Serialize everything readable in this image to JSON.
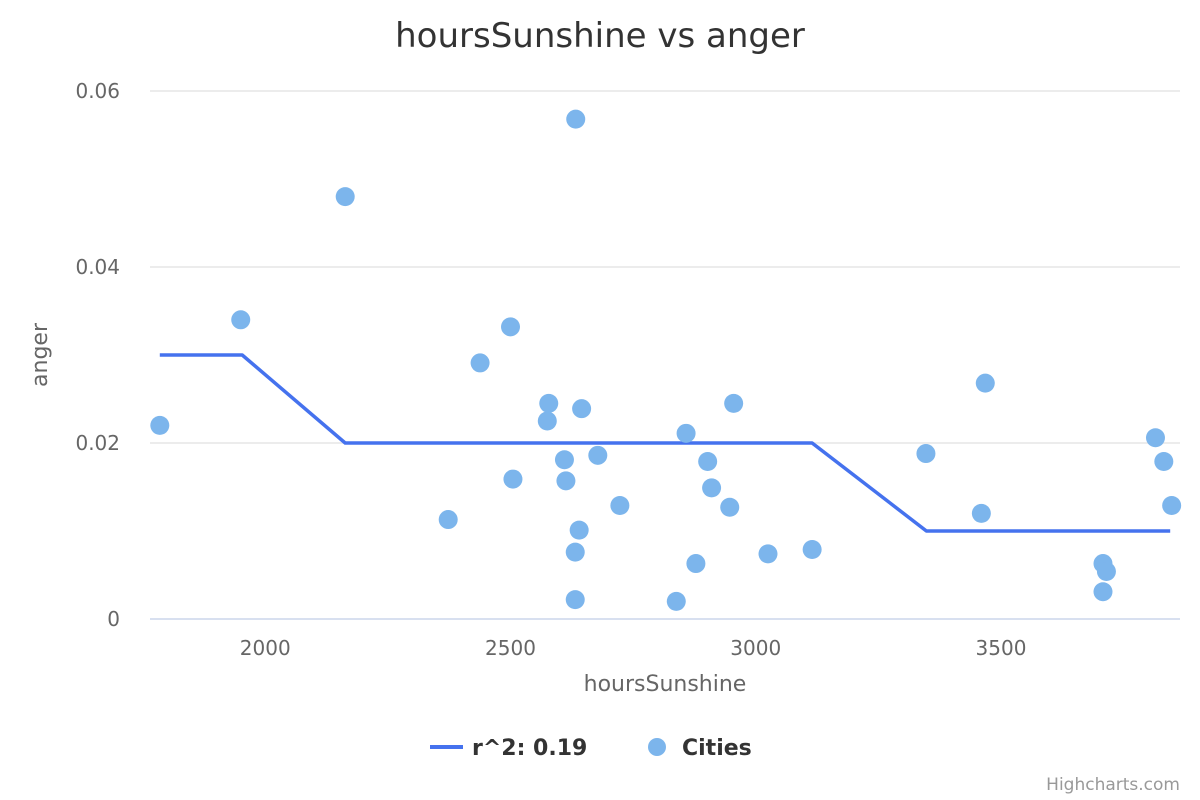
{
  "chart_data": {
    "type": "scatter",
    "title": "hoursSunshine vs anger",
    "xlabel": "hoursSunshine",
    "ylabel": "anger",
    "xlim": [
      1765,
      3865
    ],
    "ylim": [
      0,
      0.06
    ],
    "x_ticks": [
      {
        "value": 2000,
        "label": "2000"
      },
      {
        "value": 2500,
        "label": "2500"
      },
      {
        "value": 3000,
        "label": "3000"
      },
      {
        "value": 3500,
        "label": "3500"
      }
    ],
    "y_ticks": [
      {
        "value": 0,
        "label": "0"
      },
      {
        "value": 0.02,
        "label": "0.02"
      },
      {
        "value": 0.04,
        "label": "0.04"
      },
      {
        "value": 0.06,
        "label": "0.06"
      }
    ],
    "grid": {
      "horizontal": true,
      "vertical": false
    },
    "legend_position": "bottom-center",
    "series": [
      {
        "name": "r^2: 0.19",
        "type": "line",
        "color": "#4572EE",
        "points": [
          {
            "x": 1785,
            "y": 0.03
          },
          {
            "x": 1953,
            "y": 0.03
          },
          {
            "x": 2163,
            "y": 0.02
          },
          {
            "x": 3115,
            "y": 0.02
          },
          {
            "x": 3348,
            "y": 0.01
          },
          {
            "x": 3845,
            "y": 0.01
          }
        ]
      },
      {
        "name": "Cities",
        "type": "scatter",
        "color": "#7CB5EC",
        "points": [
          {
            "x": 1785,
            "y": 0.022
          },
          {
            "x": 1950,
            "y": 0.034
          },
          {
            "x": 2163,
            "y": 0.048
          },
          {
            "x": 2373,
            "y": 0.0113
          },
          {
            "x": 2438,
            "y": 0.0291
          },
          {
            "x": 2500,
            "y": 0.0332
          },
          {
            "x": 2505,
            "y": 0.0159
          },
          {
            "x": 2575,
            "y": 0.0225
          },
          {
            "x": 2578,
            "y": 0.0245
          },
          {
            "x": 2610,
            "y": 0.0181
          },
          {
            "x": 2613,
            "y": 0.0157
          },
          {
            "x": 2632,
            "y": 0.0076
          },
          {
            "x": 2632,
            "y": 0.0022
          },
          {
            "x": 2633,
            "y": 0.0568
          },
          {
            "x": 2640,
            "y": 0.0101
          },
          {
            "x": 2645,
            "y": 0.0239
          },
          {
            "x": 2678,
            "y": 0.0186
          },
          {
            "x": 2723,
            "y": 0.0129
          },
          {
            "x": 2838,
            "y": 0.002
          },
          {
            "x": 2858,
            "y": 0.0211
          },
          {
            "x": 2878,
            "y": 0.0063
          },
          {
            "x": 2902,
            "y": 0.0179
          },
          {
            "x": 2910,
            "y": 0.0149
          },
          {
            "x": 2947,
            "y": 0.0127
          },
          {
            "x": 2955,
            "y": 0.0245
          },
          {
            "x": 3025,
            "y": 0.0074
          },
          {
            "x": 3115,
            "y": 0.0079
          },
          {
            "x": 3347,
            "y": 0.0188
          },
          {
            "x": 3460,
            "y": 0.012
          },
          {
            "x": 3468,
            "y": 0.0268
          },
          {
            "x": 3708,
            "y": 0.0063
          },
          {
            "x": 3708,
            "y": 0.0031
          },
          {
            "x": 3715,
            "y": 0.0054
          },
          {
            "x": 3815,
            "y": 0.0206
          },
          {
            "x": 3832,
            "y": 0.0179
          },
          {
            "x": 3848,
            "y": 0.0129
          }
        ]
      }
    ]
  },
  "credits": "Highcharts.com",
  "colors": {
    "grid": "#E6E6E6",
    "axis_line": "#CCD6EB",
    "regression_line": "#4572EE",
    "points": "#7CB5EC"
  }
}
